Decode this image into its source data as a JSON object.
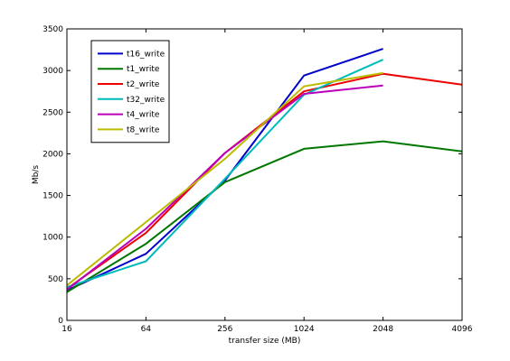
{
  "chart_data": {
    "type": "line",
    "categories": [
      "16",
      "64",
      "256",
      "1024",
      "2048",
      "4096"
    ],
    "xlabel": "transfer size (MB)",
    "ylabel": "Mb/s",
    "ylim": [
      0,
      3500
    ],
    "yticks": [
      0,
      500,
      1000,
      1500,
      2000,
      2500,
      3000,
      3500
    ],
    "grid": false,
    "legend_position": "top-left",
    "series": [
      {
        "name": "t16_write",
        "color": "#0000cc",
        "values": [
          360,
          800,
          1680,
          2940,
          3260,
          null
        ]
      },
      {
        "name": "t1_write",
        "color": "#007700",
        "values": [
          340,
          920,
          1660,
          2060,
          2150,
          2030
        ]
      },
      {
        "name": "t2_write",
        "color": "#ee0000",
        "values": [
          380,
          1050,
          2010,
          2750,
          2960,
          2830
        ]
      },
      {
        "name": "t32_write",
        "color": "#00bbbb",
        "values": [
          400,
          710,
          1700,
          2710,
          3130,
          null
        ]
      },
      {
        "name": "t4_write",
        "color": "#bb00bb",
        "values": [
          370,
          1100,
          2010,
          2720,
          2820,
          null
        ]
      },
      {
        "name": "t8_write",
        "color": "#bbbb00",
        "values": [
          420,
          1180,
          1940,
          2810,
          2970,
          null
        ]
      }
    ]
  }
}
